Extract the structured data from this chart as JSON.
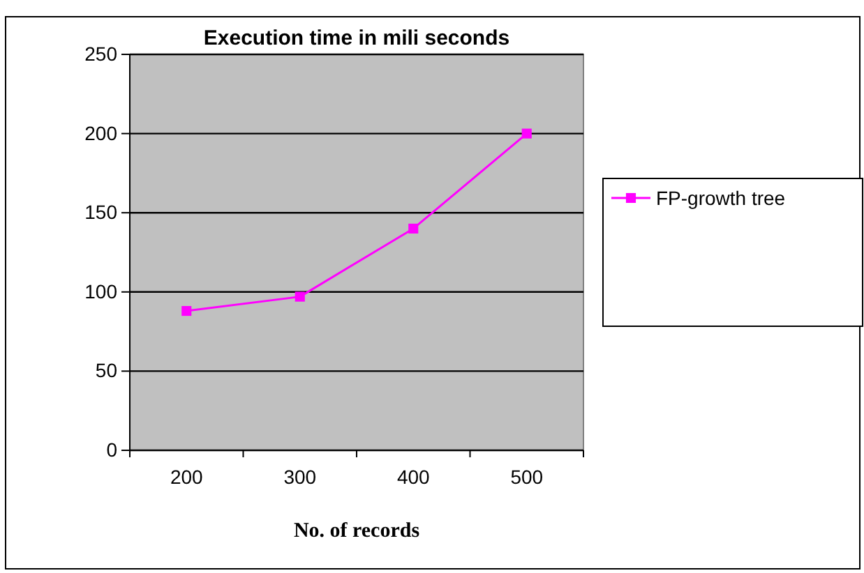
{
  "chart_data": {
    "type": "line",
    "title": "Execution time in mili seconds",
    "xlabel": "No. of records",
    "categories": [
      "200",
      "300",
      "400",
      "500"
    ],
    "series": [
      {
        "name": "FP-growth tree",
        "color": "#ff00ff",
        "values": [
          88,
          97,
          140,
          200
        ]
      }
    ],
    "ylim": [
      0,
      250
    ],
    "yticks": [
      0,
      50,
      100,
      150,
      200,
      250
    ],
    "grid": "y",
    "legend": "right",
    "marker": "square",
    "line_style": "solid"
  }
}
